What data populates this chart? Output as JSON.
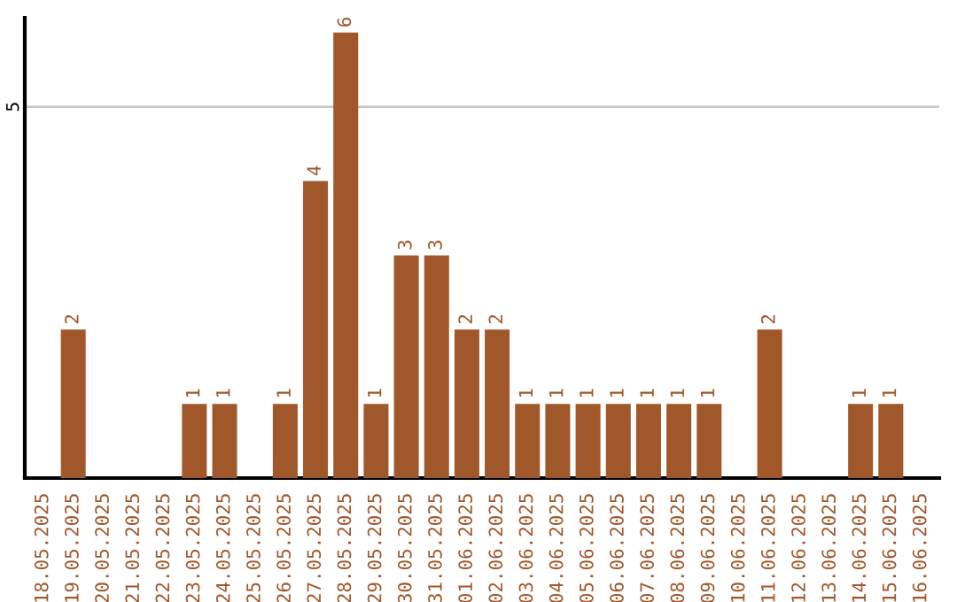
{
  "chart_data": {
    "type": "bar",
    "categories": [
      "18.05.2025",
      "19.05.2025",
      "20.05.2025",
      "21.05.2025",
      "22.05.2025",
      "23.05.2025",
      "24.05.2025",
      "25.05.2025",
      "26.05.2025",
      "27.05.2025",
      "28.05.2025",
      "29.05.2025",
      "30.05.2025",
      "31.05.2025",
      "01.06.2025",
      "02.06.2025",
      "03.06.2025",
      "04.06.2025",
      "05.06.2025",
      "06.06.2025",
      "07.06.2025",
      "08.06.2025",
      "09.06.2025",
      "10.06.2025",
      "11.06.2025",
      "12.06.2025",
      "13.06.2025",
      "14.06.2025",
      "15.06.2025",
      "16.06.2025"
    ],
    "values": [
      0,
      2,
      0,
      0,
      0,
      1,
      1,
      0,
      1,
      4,
      6,
      1,
      3,
      3,
      2,
      2,
      1,
      1,
      1,
      1,
      1,
      1,
      1,
      0,
      2,
      0,
      0,
      1,
      1,
      0
    ],
    "value_labels": [
      null,
      "2",
      null,
      null,
      null,
      "1",
      "1",
      null,
      "1",
      "4",
      "6",
      "1",
      "3",
      "3",
      "2",
      "2",
      "1",
      "1",
      "1",
      "1",
      "1",
      "1",
      "1",
      null,
      "2",
      null,
      null,
      "1",
      "1",
      null
    ],
    "color": "#a0572a",
    "ylim": [
      0,
      6.2
    ],
    "yticks": [
      5
    ],
    "grid": "y"
  }
}
